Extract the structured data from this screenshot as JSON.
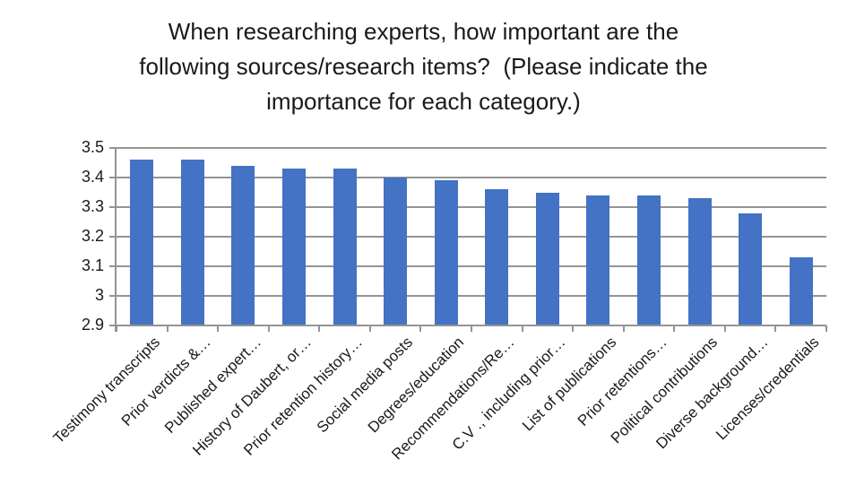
{
  "title": {
    "lines": [
      "When researching experts, how important are the",
      "following sources/research items?  (Please indicate the",
      "importance for each category.)"
    ]
  },
  "y_axis": {
    "tick_labels": [
      "3.5",
      "3.4",
      "3.3",
      "3.2",
      "3.1",
      "3",
      "2.9"
    ]
  },
  "chart_data": {
    "type": "bar",
    "title": "When researching experts, how important are the following sources/research items?  (Please indicate the importance for each category.)",
    "categories": [
      "Testimony transcripts",
      "Prior verdicts &…",
      "Published expert…",
      "History of Daubert, or…",
      "Prior retention history…",
      "Social media posts",
      "Degrees/education",
      "Recommendations/Re…",
      "C.V ., including prior…",
      "List of publications",
      "Prior retentions…",
      "Political contributions",
      "Diverse background…",
      "Licenses/credentials"
    ],
    "values": [
      3.46,
      3.46,
      3.44,
      3.43,
      3.43,
      3.4,
      3.39,
      3.36,
      3.35,
      3.34,
      3.34,
      3.33,
      3.28,
      3.13
    ],
    "xlabel": "",
    "ylabel": "",
    "ylim": [
      2.9,
      3.5
    ],
    "ytick_step": 0.1,
    "grid": "horizontal",
    "legend_position": "none",
    "colors": {
      "bar": "#4472C4",
      "gridline": "#949494",
      "axis": "#949494",
      "text": "#1a1a1a"
    }
  }
}
